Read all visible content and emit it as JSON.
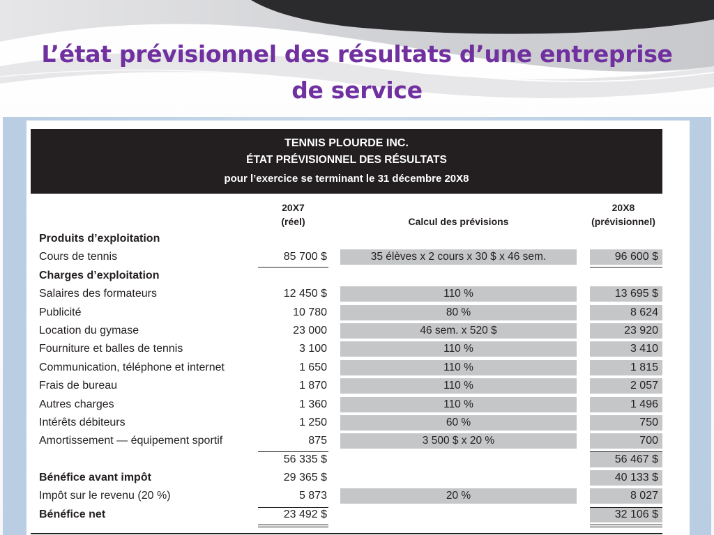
{
  "slide": {
    "title": "L’état prévisionnel des résultats d’une entreprise de service"
  },
  "statement": {
    "company": "TENNIS PLOURDE INC.",
    "title": "ÉTAT PRÉVISIONNEL DES RÉSULTATS",
    "period": "pour l’exercice se terminant le 31 décembre 20X8",
    "columns": {
      "col1_line1": "20X7",
      "col1_line2": "(réel)",
      "col2": "Calcul des prévisions",
      "col3_line1": "20X8",
      "col3_line2": "(prévisionnel)"
    },
    "rows": [
      {
        "label": "Produits d’exploitation",
        "bold": true,
        "v7": "",
        "calc": "",
        "v8": ""
      },
      {
        "label": "Cours de tennis",
        "bold": false,
        "v7": "85 700 $",
        "calc": "35 élèves x 2 cours x 30 $ x 46 sem.",
        "v8": "96 600 $"
      },
      {
        "label": "Charges d’exploitation",
        "bold": true,
        "v7": "",
        "calc": "",
        "v8": ""
      },
      {
        "label": "Salaires des formateurs",
        "bold": false,
        "v7": "12 450 $",
        "calc": "110 %",
        "v8": "13 695 $"
      },
      {
        "label": "Publicité",
        "bold": false,
        "v7": "10 780",
        "calc": "80 %",
        "v8": "8 624"
      },
      {
        "label": "Location du gymase",
        "bold": false,
        "v7": "23 000",
        "calc": "46 sem. x 520 $",
        "v8": "23 920"
      },
      {
        "label": "Fourniture et balles de tennis",
        "bold": false,
        "v7": "3 100",
        "calc": "110 %",
        "v8": "3 410"
      },
      {
        "label": "Communication, téléphone et internet",
        "bold": false,
        "v7": "1 650",
        "calc": "110 %",
        "v8": "1 815"
      },
      {
        "label": "Frais de bureau",
        "bold": false,
        "v7": "1 870",
        "calc": "110 %",
        "v8": "2 057"
      },
      {
        "label": "Autres charges",
        "bold": false,
        "v7": "1 360",
        "calc": "110 %",
        "v8": "1 496"
      },
      {
        "label": "Intérêts débiteurs",
        "bold": false,
        "v7": "1 250",
        "calc": "60 %",
        "v8": "750"
      },
      {
        "label": "Amortissement — équipement sportif",
        "bold": false,
        "v7": "875",
        "calc": "3 500 $ x 20 %",
        "v8": "700"
      },
      {
        "label": "",
        "bold": false,
        "v7": "56 335 $",
        "calc": "",
        "v8": "56 467 $"
      },
      {
        "label": "Bénéfice avant impôt",
        "bold": true,
        "v7": "29 365 $",
        "calc": "",
        "v8": "40 133 $"
      },
      {
        "label": "Impôt sur le revenu (20 %)",
        "bold": false,
        "v7": "5 873",
        "calc": "20 %",
        "v8": "8 027"
      },
      {
        "label": "Bénéfice net",
        "bold": true,
        "v7": "23 492 $",
        "calc": "",
        "v8": "32 106 $"
      }
    ]
  },
  "colors": {
    "title": "#7030a0",
    "header_band": "#231f20",
    "shaded_cell": "#c5c6c8",
    "frame": "#c9d9ea"
  }
}
